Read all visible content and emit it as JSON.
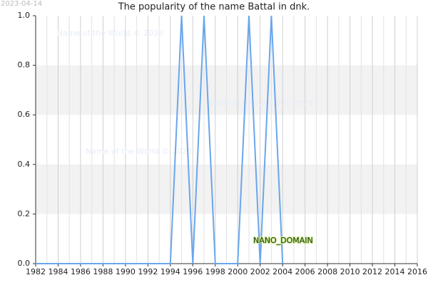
{
  "chart_data": {
    "type": "line",
    "title": "The popularity of the name Battal in dnk.",
    "date_stamp": "2023-04-14",
    "watermarks": [
      "Name of the World © 2023",
      "Name of the World © 2023",
      "Name of the World © 2023"
    ],
    "domain_label": "NANO_DOMAIN",
    "x": [
      1982,
      1983,
      1984,
      1985,
      1986,
      1987,
      1988,
      1989,
      1990,
      1991,
      1992,
      1993,
      1994,
      1995,
      1996,
      1997,
      1998,
      1999,
      2000,
      2001,
      2002,
      2003,
      2004
    ],
    "series": [
      {
        "name": "Battal",
        "color": "#6aa6ec",
        "values": [
          0,
          0,
          0,
          0,
          0,
          0,
          0,
          0,
          0,
          0,
          0,
          0,
          0,
          1,
          0,
          1,
          0,
          0,
          0,
          1,
          0,
          1,
          0
        ]
      }
    ],
    "xlim": [
      1982,
      2016
    ],
    "xticks": [
      1982,
      1984,
      1986,
      1988,
      1990,
      1992,
      1994,
      1996,
      1998,
      2000,
      2002,
      2004,
      2006,
      2008,
      2010,
      2012,
      2014,
      2016
    ],
    "xminor": [
      1983,
      1985,
      1987,
      1989,
      1991,
      1993,
      1995,
      1997,
      1999,
      2001,
      2003,
      2005,
      2007,
      2009,
      2011,
      2013,
      2015
    ],
    "ylim": [
      0,
      1
    ],
    "yticks": [
      {
        "value": 0,
        "label": "0.0"
      },
      0.2,
      0.4,
      0.6,
      0.8,
      {
        "value": 1,
        "label": "1.0"
      }
    ],
    "grid": true,
    "band_color": "#f2f2f2"
  }
}
